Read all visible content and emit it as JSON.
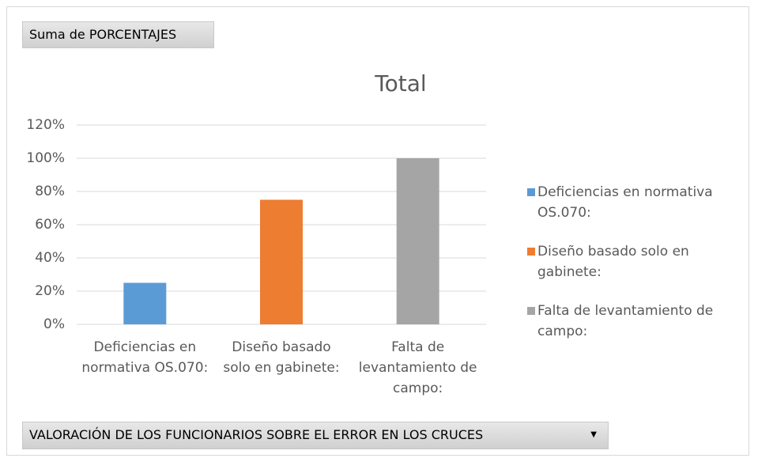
{
  "chart_data": {
    "type": "bar",
    "title": "Total",
    "value_field_button": "Suma de PORCENTAJES",
    "axis_field_button": "VALORACIÓN DE LOS FUNCIONARIOS SOBRE EL ERROR EN LOS CRUCES",
    "categories": [
      "Deficiencias en normativa OS.070:",
      "Diseño basado solo en gabinete:",
      "Falta de levantamiento de campo:"
    ],
    "values": [
      25,
      75,
      100
    ],
    "colors": [
      "#5b9bd5",
      "#ed7d31",
      "#a5a5a5"
    ],
    "ylim": [
      0,
      120
    ],
    "yticks": [
      {
        "value": 0,
        "label": "0%"
      },
      {
        "value": 20,
        "label": "20%"
      },
      {
        "value": 40,
        "label": "40%"
      },
      {
        "value": 60,
        "label": "60%"
      },
      {
        "value": 80,
        "label": "80%"
      },
      {
        "value": 100,
        "label": "100%"
      },
      {
        "value": 120,
        "label": "120%"
      }
    ],
    "grid": true,
    "legend": "right"
  }
}
